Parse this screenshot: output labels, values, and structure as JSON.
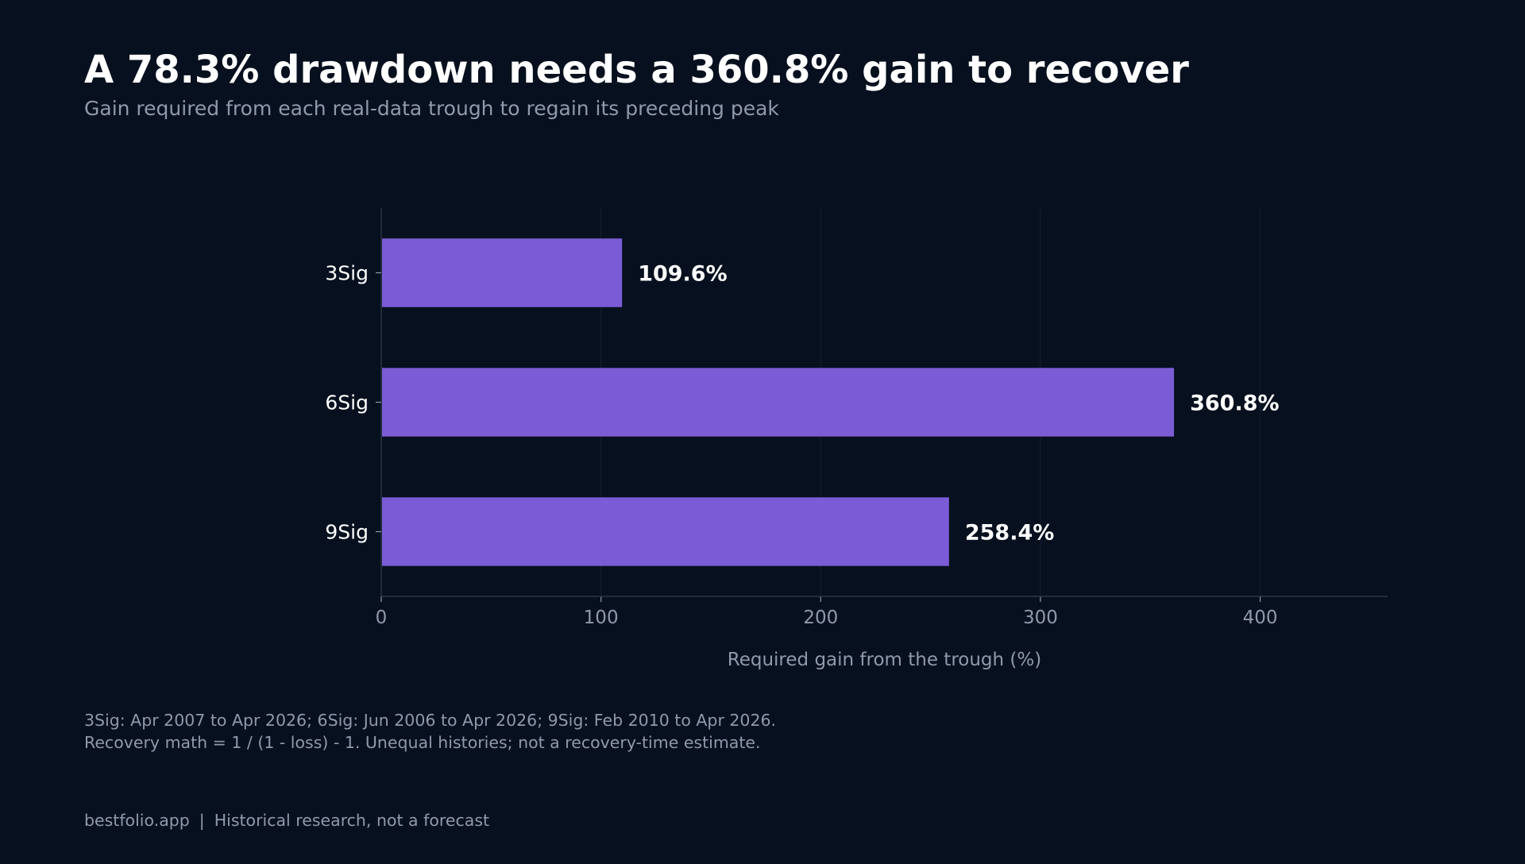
{
  "chart_data": {
    "type": "bar",
    "orientation": "horizontal",
    "title": "A 78.3% drawdown needs a 360.8% gain to recover",
    "subtitle": "Gain required from each real-data trough to regain its preceding peak",
    "categories": [
      "3Sig",
      "6Sig",
      "9Sig"
    ],
    "values": [
      109.6,
      360.8,
      258.4
    ],
    "data_labels": [
      "109.6%",
      "360.8%",
      "258.4%"
    ],
    "xlabel": "Required gain from the trough (%)",
    "ylabel": "",
    "xlim": [
      0,
      458
    ],
    "xticks": [
      0,
      100,
      200,
      300,
      400
    ],
    "grid": "vertical, faint",
    "legend": "none",
    "colors": {
      "bar": "#7b5cd6",
      "background": "#07101e",
      "grid": "#111b2a",
      "axis": "#2a3545"
    }
  },
  "footnote": {
    "line1": "3Sig: Apr 2007 to Apr 2026; 6Sig: Jun 2006 to Apr 2026; 9Sig: Feb 2010 to Apr 2026.",
    "line2": "Recovery math = 1 / (1 - loss) - 1. Unequal histories; not a recovery-time estimate."
  },
  "footer": {
    "site": "bestfolio.app",
    "separator": "|",
    "note": "Historical research, not a forecast"
  }
}
